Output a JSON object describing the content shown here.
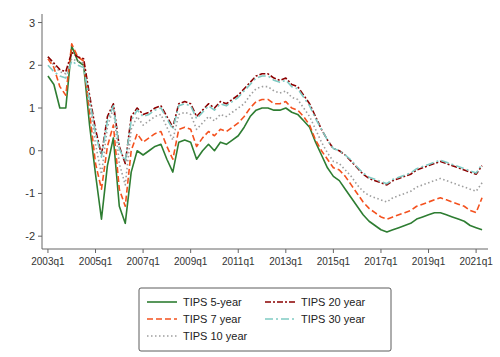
{
  "chart_data": {
    "type": "line",
    "categories": [
      "2003q1",
      null,
      null,
      null,
      null,
      null,
      null,
      null,
      "2005q1",
      null,
      null,
      null,
      null,
      null,
      null,
      null,
      "2007q1",
      null,
      null,
      null,
      null,
      null,
      null,
      null,
      "2009q1",
      null,
      null,
      null,
      null,
      null,
      null,
      null,
      "2011q1",
      null,
      null,
      null,
      null,
      null,
      null,
      null,
      "2013q1",
      null,
      null,
      null,
      null,
      null,
      null,
      null,
      "2015q1",
      null,
      null,
      null,
      null,
      null,
      null,
      null,
      "2017q1",
      null,
      null,
      null,
      null,
      null,
      null,
      null,
      "2019q1",
      null,
      null,
      null,
      null,
      null,
      null,
      null,
      "2021q1",
      null
    ],
    "series": [
      {
        "name": "TIPS 5-year",
        "color": "#2e7d32",
        "line_style": "solid",
        "values": [
          1.75,
          1.55,
          1.0,
          1.0,
          2.45,
          2.1,
          2.0,
          0.6,
          -0.55,
          -1.6,
          -0.35,
          0.3,
          -1.3,
          -1.7,
          -0.5,
          0.0,
          -0.1,
          0.0,
          0.1,
          0.15,
          -0.2,
          -0.5,
          0.2,
          0.25,
          0.2,
          -0.2,
          0.0,
          0.15,
          0.0,
          0.2,
          0.15,
          0.25,
          0.35,
          0.55,
          0.8,
          0.95,
          1.0,
          1.0,
          0.95,
          0.95,
          1.0,
          0.9,
          0.85,
          0.7,
          0.55,
          0.2,
          -0.1,
          -0.4,
          -0.6,
          -0.7,
          -0.9,
          -1.1,
          -1.3,
          -1.5,
          -1.65,
          -1.75,
          -1.85,
          -1.9,
          -1.85,
          -1.8,
          -1.75,
          -1.7,
          -1.6,
          -1.55,
          -1.5,
          -1.45,
          -1.45,
          -1.5,
          -1.55,
          -1.6,
          -1.65,
          -1.75,
          -1.8,
          -1.85
        ]
      },
      {
        "name": "TIPS 7 year",
        "color": "#f4511e",
        "line_style": "dashed",
        "values": [
          2.15,
          1.95,
          1.5,
          1.3,
          2.5,
          2.2,
          2.1,
          0.9,
          -0.3,
          -0.9,
          0.1,
          0.6,
          -0.9,
          -1.3,
          0.0,
          0.4,
          0.2,
          0.3,
          0.4,
          0.45,
          0.1,
          -0.2,
          0.5,
          0.55,
          0.5,
          0.1,
          0.3,
          0.45,
          0.35,
          0.5,
          0.45,
          0.55,
          0.65,
          0.8,
          1.0,
          1.15,
          1.2,
          1.2,
          1.1,
          1.1,
          1.15,
          1.0,
          0.95,
          0.8,
          0.6,
          0.25,
          0.0,
          -0.2,
          -0.4,
          -0.45,
          -0.6,
          -0.8,
          -1.0,
          -1.2,
          -1.35,
          -1.45,
          -1.55,
          -1.6,
          -1.55,
          -1.5,
          -1.45,
          -1.4,
          -1.3,
          -1.25,
          -1.2,
          -1.15,
          -1.1,
          -1.15,
          -1.2,
          -1.25,
          -1.3,
          -1.4,
          -1.45,
          -1.1
        ]
      },
      {
        "name": "TIPS 10 year",
        "color": "#9e9e9e",
        "line_style": "dotted",
        "values": [
          2.2,
          2.0,
          1.85,
          1.8,
          2.15,
          2.1,
          2.05,
          1.1,
          0.15,
          -0.55,
          0.55,
          1.0,
          -0.3,
          -0.8,
          0.5,
          0.8,
          0.6,
          0.7,
          0.8,
          0.85,
          0.55,
          0.25,
          0.85,
          0.9,
          0.85,
          0.5,
          0.65,
          0.8,
          0.7,
          0.85,
          0.8,
          0.9,
          1.0,
          1.1,
          1.3,
          1.45,
          1.5,
          1.5,
          1.4,
          1.35,
          1.4,
          1.25,
          1.2,
          1.0,
          0.8,
          0.5,
          0.2,
          -0.05,
          -0.25,
          -0.3,
          -0.45,
          -0.6,
          -0.8,
          -0.95,
          -1.05,
          -1.1,
          -1.15,
          -1.2,
          -1.1,
          -1.05,
          -1.0,
          -0.95,
          -0.85,
          -0.8,
          -0.75,
          -0.7,
          -0.65,
          -0.7,
          -0.75,
          -0.8,
          -0.85,
          -0.9,
          -0.95,
          -0.75
        ]
      },
      {
        "name": "TIPS 20 year",
        "color": "#8b0000",
        "line_style": "dashdot",
        "values": [
          2.2,
          2.05,
          1.9,
          1.85,
          2.3,
          2.2,
          2.15,
          1.3,
          0.5,
          -0.1,
          0.8,
          1.1,
          0.1,
          -0.3,
          0.8,
          1.0,
          0.85,
          0.9,
          1.0,
          1.05,
          0.8,
          0.55,
          1.1,
          1.15,
          1.1,
          0.8,
          0.95,
          1.1,
          1.0,
          1.15,
          1.1,
          1.2,
          1.3,
          1.45,
          1.6,
          1.75,
          1.8,
          1.8,
          1.7,
          1.65,
          1.7,
          1.55,
          1.5,
          1.3,
          1.1,
          0.8,
          0.5,
          0.25,
          0.05,
          0.0,
          -0.1,
          -0.25,
          -0.4,
          -0.55,
          -0.65,
          -0.7,
          -0.75,
          -0.8,
          -0.7,
          -0.65,
          -0.6,
          -0.55,
          -0.45,
          -0.4,
          -0.35,
          -0.3,
          -0.25,
          -0.3,
          -0.35,
          -0.4,
          -0.45,
          -0.5,
          -0.55,
          -0.35
        ]
      },
      {
        "name": "TIPS 30 year",
        "color": "#80cbc4",
        "line_style": "longdashdot",
        "values": [
          2.0,
          1.85,
          1.75,
          1.7,
          2.1,
          2.0,
          1.95,
          1.2,
          0.4,
          -0.15,
          0.7,
          1.05,
          0.05,
          -0.25,
          0.7,
          0.95,
          0.8,
          0.85,
          0.95,
          1.0,
          0.75,
          0.5,
          1.05,
          1.1,
          1.05,
          0.75,
          0.9,
          1.05,
          0.95,
          1.1,
          1.05,
          1.15,
          1.25,
          1.4,
          1.55,
          1.7,
          1.75,
          1.75,
          1.65,
          1.6,
          1.65,
          1.5,
          1.45,
          1.25,
          1.05,
          0.75,
          0.5,
          0.25,
          0.05,
          0.0,
          -0.1,
          -0.22,
          -0.38,
          -0.52,
          -0.62,
          -0.67,
          -0.72,
          -0.77,
          -0.67,
          -0.62,
          -0.57,
          -0.52,
          -0.42,
          -0.37,
          -0.32,
          -0.27,
          -0.22,
          -0.27,
          -0.32,
          -0.37,
          -0.42,
          -0.47,
          -0.52,
          -0.32
        ]
      }
    ],
    "ylim": [
      -2.3,
      3.2
    ],
    "yticks": [
      -2,
      -1,
      0,
      1,
      2,
      3
    ],
    "grid": false,
    "legend": "bottom"
  }
}
